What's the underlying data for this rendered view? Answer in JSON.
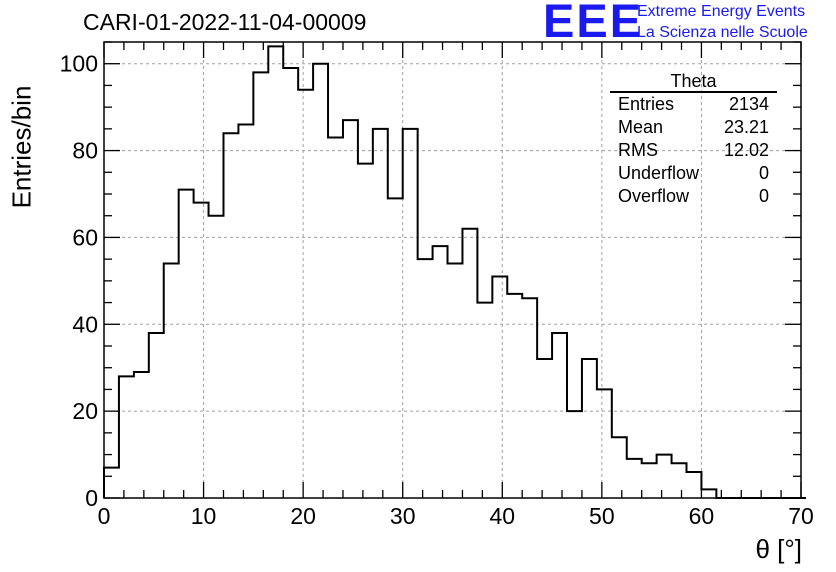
{
  "chart_data": {
    "type": "bar",
    "title": "CARI-01-2022-11-04-00009",
    "xlabel": "θ [°]",
    "ylabel": "Entries/bin",
    "xlim": [
      0,
      70
    ],
    "ylim": [
      0,
      105
    ],
    "bin_width": 1.5,
    "x_ticks": [
      0,
      10,
      20,
      30,
      40,
      50,
      60,
      70
    ],
    "y_ticks": [
      0,
      20,
      40,
      60,
      80,
      100
    ],
    "grid": true,
    "values": [
      7,
      28,
      29,
      38,
      54,
      71,
      68,
      65,
      84,
      86,
      98,
      104,
      99,
      94,
      100,
      83,
      87,
      77,
      85,
      69,
      85,
      55,
      58,
      54,
      62,
      45,
      51,
      47,
      46,
      32,
      38,
      20,
      32,
      25,
      14,
      9,
      8,
      10,
      8,
      6,
      2,
      0,
      0,
      0,
      0,
      0,
      0
    ]
  },
  "stats_box": {
    "name": "Theta",
    "rows": [
      {
        "label": "Entries",
        "value": "2134"
      },
      {
        "label": "Mean",
        "value": "23.21"
      },
      {
        "label": "RMS",
        "value": "12.02"
      },
      {
        "label": "Underflow",
        "value": "0"
      },
      {
        "label": "Overflow",
        "value": "0"
      }
    ]
  },
  "logo": {
    "mark": "EEE",
    "line1": "Extreme Energy Events",
    "line2": "La Scienza nelle Scuole",
    "color": "#1a1aee"
  }
}
